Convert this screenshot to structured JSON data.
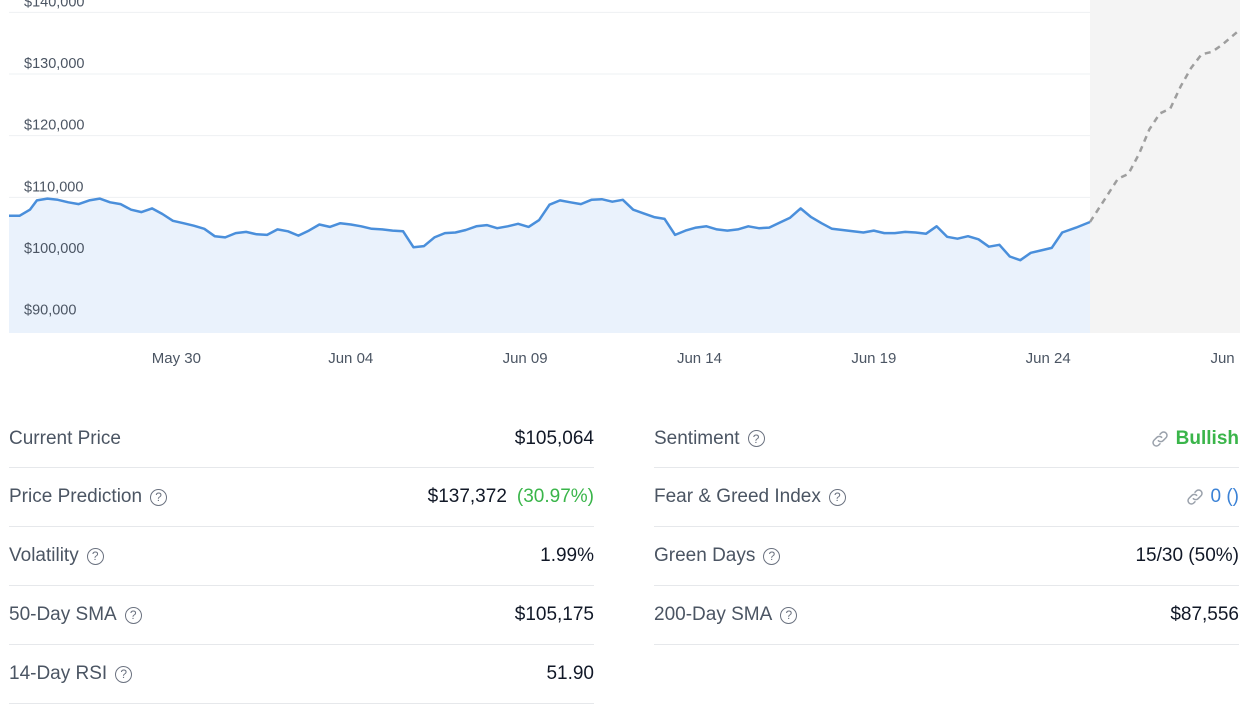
{
  "chart_data": {
    "type": "line",
    "y_ticks": [
      "$140,000",
      "$130,000",
      "$120,000",
      "$110,000",
      "$100,000",
      "$90,000"
    ],
    "y_tick_values": [
      140000,
      130000,
      120000,
      110000,
      100000,
      90000
    ],
    "ylim": [
      88000,
      142000
    ],
    "x_ticks": [
      "May 30",
      "Jun 04",
      "Jun 09",
      "Jun 14",
      "Jun 19",
      "Jun 24",
      "Jun"
    ],
    "x_tick_days": [
      5,
      10,
      15,
      20,
      25,
      30,
      35
    ],
    "xlim_days": [
      0.2,
      35.5
    ],
    "series": [
      {
        "style": "solid",
        "color": "#4a8fdb",
        "x_days": [
          0.2,
          0.5,
          0.8,
          1.0,
          1.3,
          1.6,
          1.9,
          2.2,
          2.5,
          2.8,
          3.1,
          3.4,
          3.7,
          4.0,
          4.3,
          4.6,
          4.9,
          5.2,
          5.5,
          5.8,
          6.1,
          6.4,
          6.7,
          7.0,
          7.3,
          7.6,
          7.9,
          8.2,
          8.5,
          8.8,
          9.1,
          9.4,
          9.7,
          10.0,
          10.3,
          10.6,
          10.9,
          11.2,
          11.5,
          11.8,
          12.1,
          12.4,
          12.7,
          13.0,
          13.3,
          13.6,
          13.9,
          14.2,
          14.5,
          14.8,
          15.1,
          15.4,
          15.7,
          16.0,
          16.3,
          16.6,
          16.9,
          17.2,
          17.5,
          17.8,
          18.1,
          18.4,
          18.7,
          19.0,
          19.3,
          19.6,
          19.9,
          20.2,
          20.5,
          20.8,
          21.1,
          21.4,
          21.7,
          22.0,
          22.3,
          22.6,
          22.9,
          23.2,
          23.5,
          23.8,
          24.1,
          24.4,
          24.7,
          25.0,
          25.3,
          25.6,
          25.9,
          26.2,
          26.5,
          26.8,
          27.1,
          27.4,
          27.7,
          28.0,
          28.3,
          28.6,
          28.9,
          29.2,
          29.5,
          29.8,
          30.1,
          30.4,
          30.8,
          31.2
        ],
        "y": [
          107000,
          107000,
          108000,
          109500,
          109800,
          109600,
          109200,
          108900,
          109500,
          109800,
          109200,
          108900,
          108000,
          107600,
          108200,
          107300,
          106200,
          105800,
          105400,
          104900,
          103700,
          103500,
          104200,
          104400,
          104000,
          103900,
          104800,
          104500,
          103800,
          104600,
          105600,
          105200,
          105800,
          105600,
          105300,
          104900,
          104800,
          104600,
          104500,
          101900,
          102100,
          103500,
          104200,
          104300,
          104700,
          105300,
          105500,
          105000,
          105300,
          105700,
          105200,
          106300,
          108800,
          109500,
          109200,
          108900,
          109600,
          109700,
          109300,
          109600,
          108000,
          107400,
          106800,
          106500,
          103900,
          104600,
          105100,
          105300,
          104800,
          104600,
          104800,
          105300,
          105000,
          105100,
          105900,
          106700,
          108200,
          106800,
          105800,
          104900,
          104700,
          104500,
          104300,
          104600,
          104200,
          104200,
          104400,
          104300,
          104100,
          105300,
          103600,
          103300,
          103700,
          103200,
          102000,
          102300,
          100400,
          99800,
          101000,
          101400,
          101800,
          104300,
          105100,
          106000
        ]
      },
      {
        "style": "dashed",
        "color": "#9e9e9e",
        "x_days": [
          31.2,
          31.6,
          32.0,
          32.3,
          32.6,
          32.9,
          33.2,
          33.5,
          33.8,
          34.1,
          34.4,
          34.7,
          35.0,
          35.5
        ],
        "y": [
          106000,
          109500,
          113000,
          113800,
          117000,
          121000,
          123600,
          124400,
          128000,
          131000,
          133200,
          133600,
          134800,
          137200
        ]
      }
    ],
    "projection_start_day": 31.2
  },
  "stats": {
    "left": [
      {
        "label": "Current Price",
        "value": "$105,064"
      },
      {
        "label": "Price Prediction",
        "value": "$137,372",
        "change": "(30.97%)"
      },
      {
        "label": "Volatility",
        "value": "1.99%"
      },
      {
        "label": "50-Day SMA",
        "value": "$105,175"
      },
      {
        "label": "14-Day RSI",
        "value": "51.90"
      }
    ],
    "right": [
      {
        "label": "Sentiment",
        "value": "Bullish"
      },
      {
        "label": "Fear & Greed Index",
        "value": "0 ()"
      },
      {
        "label": "Green Days",
        "value": "15/30 (50%)"
      },
      {
        "label": "200-Day SMA",
        "value": "$87,556"
      }
    ]
  },
  "help_glyph": "?",
  "icons": {
    "help": "question-circle-icon",
    "link": "link-icon"
  },
  "colors": {
    "positive": "#3ab54a",
    "link": "#3b82d6",
    "line": "#4a8fdb",
    "area": "#eaf2fc",
    "projection_bg": "#f4f4f4"
  }
}
